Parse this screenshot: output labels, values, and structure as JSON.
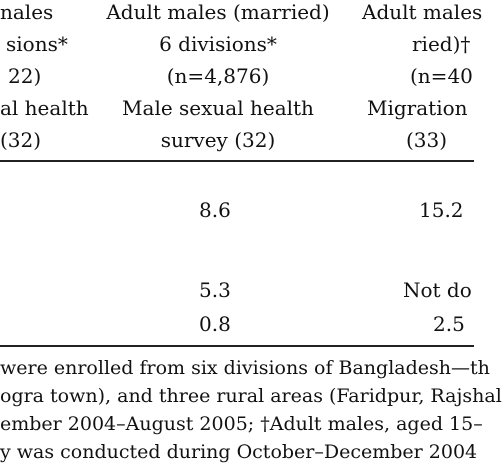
{
  "table": {
    "columns": [
      {
        "line1": "nales",
        "line2": "sions*",
        "line3": "22)",
        "line4": "al health",
        "line5": "(32)"
      },
      {
        "line1": "Adult males (married)",
        "line2": "6 divisions*",
        "line3": "(n=4,876)",
        "line4": "Male sexual health",
        "line5": "survey (32)"
      },
      {
        "line1": "Adult males",
        "line2": "ried)†",
        "line3": "(n=40",
        "line4": "Migration",
        "line5": "(33)"
      }
    ],
    "rows": [
      {
        "col1": "8.6",
        "col2": "15.2"
      },
      {
        "col1": "5.3",
        "col2": "Not do"
      },
      {
        "col1": "0.8",
        "col2": "2.5"
      }
    ]
  },
  "footnote": {
    "line1": "were enrolled from six divisions of Bangladesh—th",
    "line2": "ogra town), and three rural areas (Faridpur, Rajshal",
    "line3": "ember 2004–August 2005; †Adult males, aged 15–",
    "line4": "y was conducted during October–December 2004"
  }
}
